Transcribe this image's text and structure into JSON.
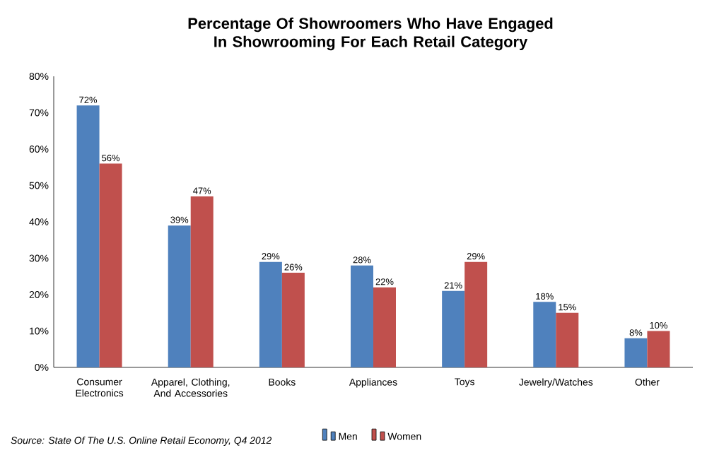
{
  "chart_data": {
    "type": "bar",
    "title": "Percentage Of Showroomers Who Have Engaged In Showrooming For Each Retail Category",
    "categories": [
      "Consumer Electronics",
      "Apparel, Clothing, And Accessories",
      "Books",
      "Appliances",
      "Toys",
      "Jewelry/Watches",
      "Other"
    ],
    "series": [
      {
        "name": "Men",
        "color": "#4f81bd",
        "values": [
          72,
          39,
          29,
          28,
          21,
          18,
          8
        ],
        "value_labels": [
          "72%",
          "39%",
          "29%",
          "28%",
          "21%",
          "18%",
          "8%"
        ]
      },
      {
        "name": "Women",
        "color": "#c0504d",
        "values": [
          56,
          47,
          26,
          22,
          29,
          15,
          10
        ],
        "value_labels": [
          "56%",
          "47%",
          "26%",
          "22%",
          "29%",
          "15%",
          "10%"
        ]
      }
    ],
    "ylim": [
      0,
      80
    ],
    "yticks": [
      {
        "value": 0,
        "label": "0%"
      },
      {
        "value": 10,
        "label": "10%"
      },
      {
        "value": 20,
        "label": "20%"
      },
      {
        "value": 30,
        "label": "30%"
      },
      {
        "value": 40,
        "label": "40%"
      },
      {
        "value": 50,
        "label": "50%"
      },
      {
        "value": 60,
        "label": "60%"
      },
      {
        "value": 70,
        "label": "70%"
      },
      {
        "value": 80,
        "label": "80%"
      }
    ],
    "grid": false,
    "legend": "bottom",
    "annotations": [
      "Source: State Of The U.S. Online Retail Economy, Q4 2012"
    ]
  }
}
